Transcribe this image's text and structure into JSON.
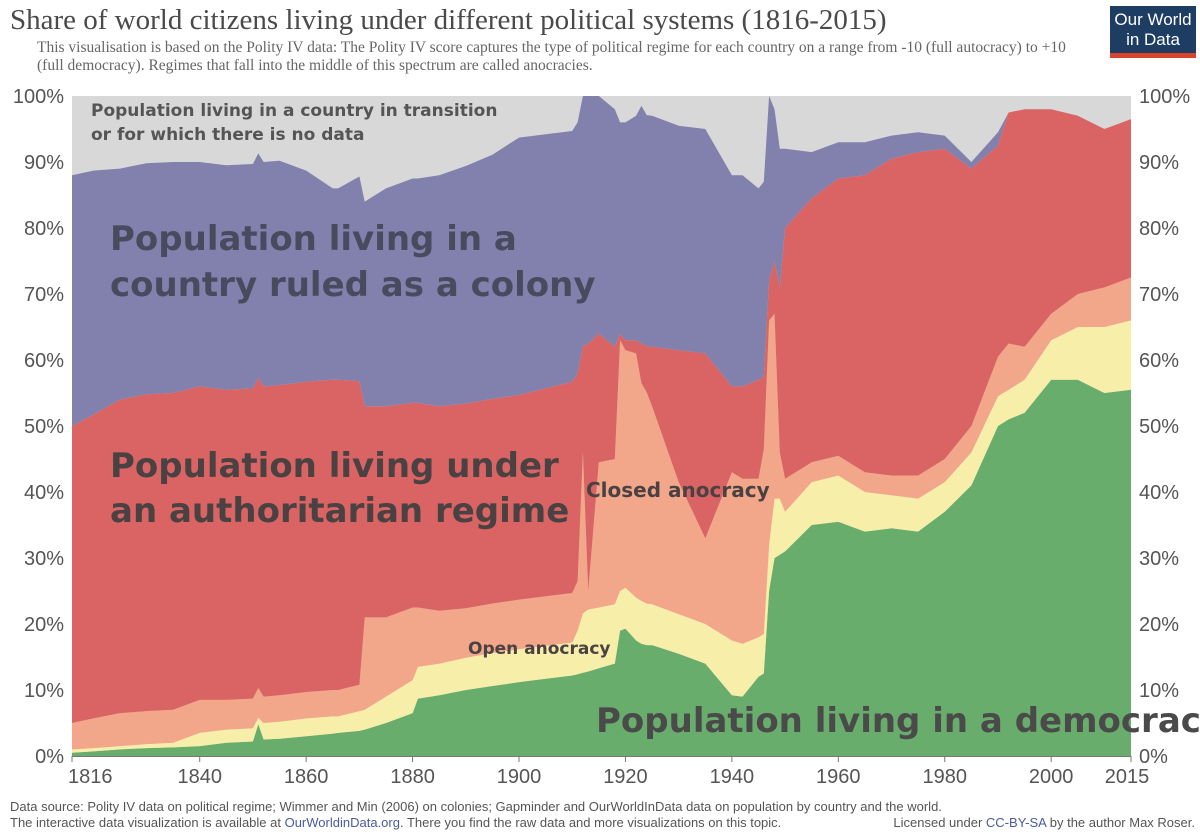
{
  "header": {
    "title": "Share of world citizens living under different political systems (1816-2015)",
    "subtitle": "This visualisation is based on the Polity IV data: The Polity IV score captures the type of political regime for each country on a range from -10 (full autocracy) to +10 (full democracy). Regimes that fall into the middle of this spectrum are called anocracies.",
    "logo_line1": "Our World",
    "logo_line2": "in Data"
  },
  "colors": {
    "democracy": "#69ad6c",
    "open_anocracy": "#f7eeaa",
    "closed_anocracy": "#f2a68a",
    "authoritarian": "#da6363",
    "colony": "#8280ad",
    "no_data": "#d8d8d8",
    "logo_bg": "#1d3d63",
    "logo_bar": "#d8452c"
  },
  "chart_data": {
    "type": "area",
    "stacked": true,
    "title": "Share of world citizens living under different political systems (1816-2015)",
    "ylim": [
      0,
      100
    ],
    "xlim": [
      1816,
      2015
    ],
    "x_ticks": [
      "1816",
      "1840",
      "1860",
      "1880",
      "1900",
      "1920",
      "1940",
      "1960",
      "1980",
      "2000",
      "2015"
    ],
    "x_tick_values": [
      1816,
      1840,
      1860,
      1880,
      1900,
      1920,
      1940,
      1960,
      1980,
      2000,
      2015
    ],
    "y_ticks": [
      "0%",
      "10%",
      "20%",
      "30%",
      "40%",
      "50%",
      "60%",
      "70%",
      "80%",
      "90%",
      "100%"
    ],
    "y_tick_values": [
      0,
      10,
      20,
      30,
      40,
      50,
      60,
      70,
      80,
      90,
      100
    ],
    "years": [
      1816,
      1820,
      1825,
      1830,
      1835,
      1840,
      1845,
      1850,
      1851,
      1852,
      1855,
      1860,
      1865,
      1866,
      1870,
      1871,
      1875,
      1880,
      1881,
      1885,
      1890,
      1895,
      1900,
      1905,
      1910,
      1911,
      1912,
      1913,
      1915,
      1918,
      1919,
      1920,
      1922,
      1923,
      1924,
      1925,
      1930,
      1935,
      1940,
      1942,
      1945,
      1946,
      1947,
      1948,
      1949,
      1950,
      1955,
      1960,
      1965,
      1970,
      1975,
      1980,
      1985,
      1990,
      1992,
      1995,
      2000,
      2005,
      2010,
      2015
    ],
    "series": [
      {
        "name": "Population living in a democracy",
        "key": "democracy",
        "values": [
          0.5,
          0.7,
          1.0,
          1.2,
          1.3,
          1.5,
          2.0,
          2.2,
          4.8,
          2.5,
          2.6,
          3.0,
          3.4,
          3.5,
          3.8,
          4.0,
          5.0,
          6.5,
          8.7,
          9.2,
          10.0,
          10.6,
          11.2,
          11.7,
          12.2,
          12.4,
          12.6,
          12.8,
          13.3,
          14.0,
          19.0,
          19.3,
          17.5,
          17.0,
          16.8,
          16.8,
          15.5,
          14.0,
          9.2,
          9.0,
          12.0,
          12.5,
          25.0,
          30.0,
          30.5,
          31.0,
          35.0,
          35.5,
          34.0,
          34.5,
          34.0,
          37.0,
          41.0,
          50.0,
          51.0,
          52.0,
          57.0,
          57.0,
          55.0,
          55.5
        ]
      },
      {
        "name": "Open anocracy",
        "key": "open_anocracy",
        "values": [
          0.5,
          0.5,
          0.5,
          0.6,
          0.7,
          2.0,
          2.0,
          2.0,
          1.0,
          2.5,
          2.6,
          2.7,
          2.6,
          2.5,
          3.0,
          3.0,
          4.0,
          5.0,
          4.8,
          4.8,
          4.9,
          5.0,
          5.0,
          5.0,
          5.0,
          6.6,
          9.0,
          9.4,
          9.2,
          9.0,
          6.0,
          6.2,
          6.5,
          6.5,
          6.3,
          6.2,
          6.0,
          6.0,
          8.3,
          8.0,
          6.0,
          6.0,
          7.0,
          9.0,
          8.5,
          6.0,
          6.5,
          7.0,
          6.0,
          5.0,
          5.0,
          4.5,
          5.0,
          4.5,
          4.5,
          5.0,
          6.0,
          8.0,
          10.0,
          10.5
        ]
      },
      {
        "name": "Closed anocracy",
        "key": "closed_anocracy",
        "values": [
          4.0,
          4.5,
          5.0,
          5.0,
          5.0,
          5.0,
          4.5,
          4.5,
          4.5,
          4.0,
          4.0,
          4.0,
          4.0,
          4.0,
          4.0,
          14.0,
          12.0,
          11.0,
          9.0,
          8.0,
          7.5,
          7.5,
          7.5,
          7.5,
          7.5,
          7.5,
          24.5,
          2.8,
          22.0,
          22.0,
          38.0,
          36.0,
          37.0,
          33.0,
          32.0,
          30.0,
          20.0,
          13.0,
          25.5,
          25.0,
          24.0,
          28.0,
          34.0,
          28.0,
          7.0,
          5.0,
          3.0,
          3.0,
          3.0,
          3.0,
          3.5,
          3.5,
          4.0,
          6.0,
          7.0,
          5.0,
          4.0,
          5.0,
          6.0,
          6.5
        ]
      },
      {
        "name": "Population living under an authoritarian regime",
        "key": "authoritarian",
        "values": [
          45.0,
          46.0,
          47.5,
          48.0,
          48.0,
          47.5,
          47.0,
          47.0,
          47.0,
          47.0,
          47.0,
          47.0,
          47.0,
          47.0,
          46.0,
          32.0,
          32.0,
          31.0,
          31.0,
          31.0,
          31.0,
          31.0,
          31.0,
          31.5,
          32.0,
          31.5,
          16.0,
          37.5,
          19.5,
          17.0,
          1.0,
          1.5,
          2.0,
          6.0,
          7.0,
          9.0,
          20.0,
          28.0,
          13.0,
          14.0,
          15.0,
          11.0,
          6.0,
          8.0,
          25.0,
          38.0,
          40.0,
          42.0,
          45.0,
          48.0,
          49.0,
          47.0,
          39.0,
          32.0,
          35.0,
          36.0,
          31.0,
          27.0,
          24.0,
          24.0
        ]
      },
      {
        "name": "Population living in a country ruled as a colony",
        "key": "colony",
        "values": [
          38.0,
          37.0,
          35.0,
          35.0,
          35.0,
          34.0,
          34.0,
          34.0,
          34.0,
          34.0,
          34.0,
          32.0,
          29.0,
          29.0,
          31.0,
          31.0,
          33.0,
          34.0,
          34.0,
          35.0,
          36.0,
          37.0,
          39.0,
          38.5,
          38.0,
          38.0,
          38.0,
          38.0,
          38.0,
          36.0,
          32.0,
          33.0,
          34.0,
          36.0,
          35.0,
          35.0,
          34.0,
          34.0,
          32.0,
          32.0,
          29.0,
          29.5,
          29.0,
          23.0,
          21.0,
          12.0,
          7.0,
          5.5,
          5.0,
          3.5,
          3.0,
          2.0,
          1.0,
          2.0,
          0.0,
          0.0,
          0.0,
          0.0,
          0.0,
          0.0
        ]
      },
      {
        "name": "Population living in a country in transition or for which there is no data",
        "key": "no_data",
        "values": [
          12.0,
          11.3,
          11.0,
          10.2,
          10.0,
          10.0,
          10.5,
          10.3,
          8.7,
          10.0,
          9.8,
          11.3,
          14.0,
          14.0,
          12.2,
          16.0,
          14.0,
          12.5,
          12.5,
          12.0,
          10.6,
          8.9,
          6.3,
          5.8,
          5.3,
          4.0,
          -0.1,
          -0.5,
          -2.0,
          2.0,
          4.0,
          4.0,
          3.0,
          1.5,
          2.9,
          3.0,
          4.5,
          5.0,
          12.0,
          12.0,
          14.0,
          13.0,
          0.0,
          2.0,
          8.0,
          8.0,
          8.5,
          7.0,
          7.0,
          6.0,
          5.5,
          6.0,
          10.0,
          5.5,
          2.5,
          2.0,
          2.0,
          3.0,
          5.0,
          3.5
        ]
      }
    ],
    "annotations": {
      "no_data_line1": "Population living in a country in transition",
      "no_data_line2": "or for which there is no data",
      "colony_line1": "Population living in a",
      "colony_line2": "country ruled as a colony",
      "authoritarian_line1": "Population living under",
      "authoritarian_line2": "an authoritarian regime",
      "closed_anocracy": "Closed anocracy",
      "open_anocracy": "Open anocracy",
      "democracy": "Population living in a democracy"
    }
  },
  "footer": {
    "line1": "Data source: Polity IV data on political regime; Wimmer and Min (2006) on colonies; Gapminder and OurWorldInData data on population by country and the world.",
    "line2_pre": "The interactive data visualization is available at ",
    "line2_link": "OurWorldinData.org",
    "line2_post": ". There you find the raw data and more visualizations on this topic.",
    "license_pre": "Licensed under ",
    "license_link": "CC-BY-SA",
    "license_post": " by the author Max Roser."
  }
}
